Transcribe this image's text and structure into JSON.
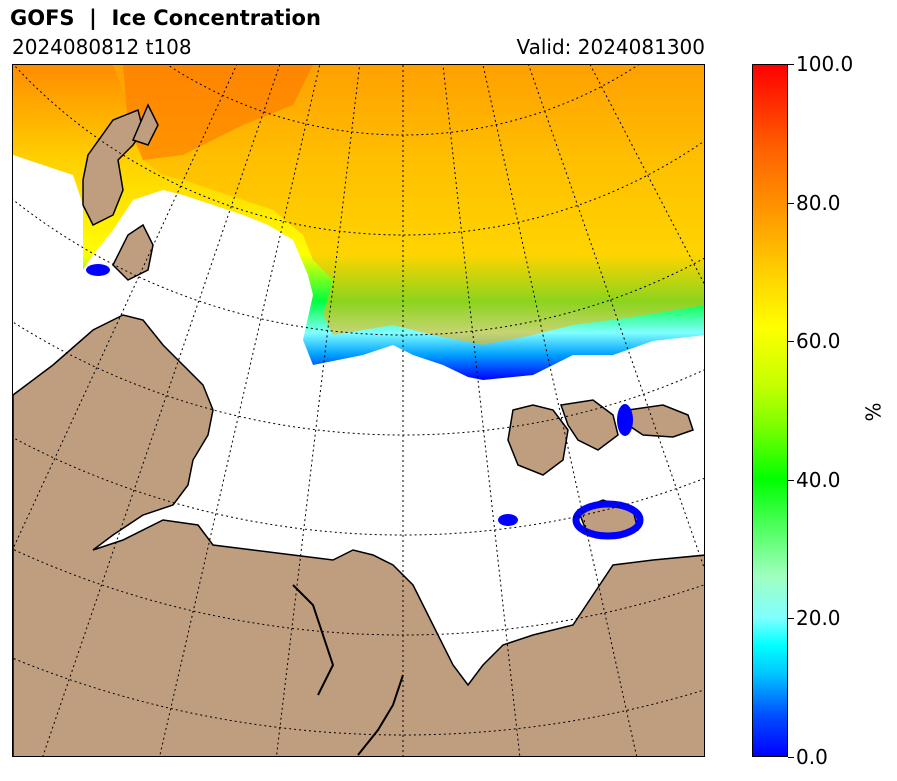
{
  "title": "GOFS  |  Ice Concentration",
  "subtitle_left": "2024080812 t108",
  "subtitle_right": "Valid: 2024081300",
  "colorbar": {
    "unit": "%",
    "range": [
      0,
      100
    ],
    "ticks": [
      "0.0",
      "20.0",
      "40.0",
      "60.0",
      "80.0",
      "100.0"
    ],
    "colors": [
      "#0000ff",
      "#00ffff",
      "#00ff00",
      "#ffff00",
      "#ff9c00",
      "#ff0000"
    ]
  },
  "map": {
    "land_color": "#bf9e80",
    "ocean_color": "#ffffff",
    "graticule": "dotted"
  }
}
